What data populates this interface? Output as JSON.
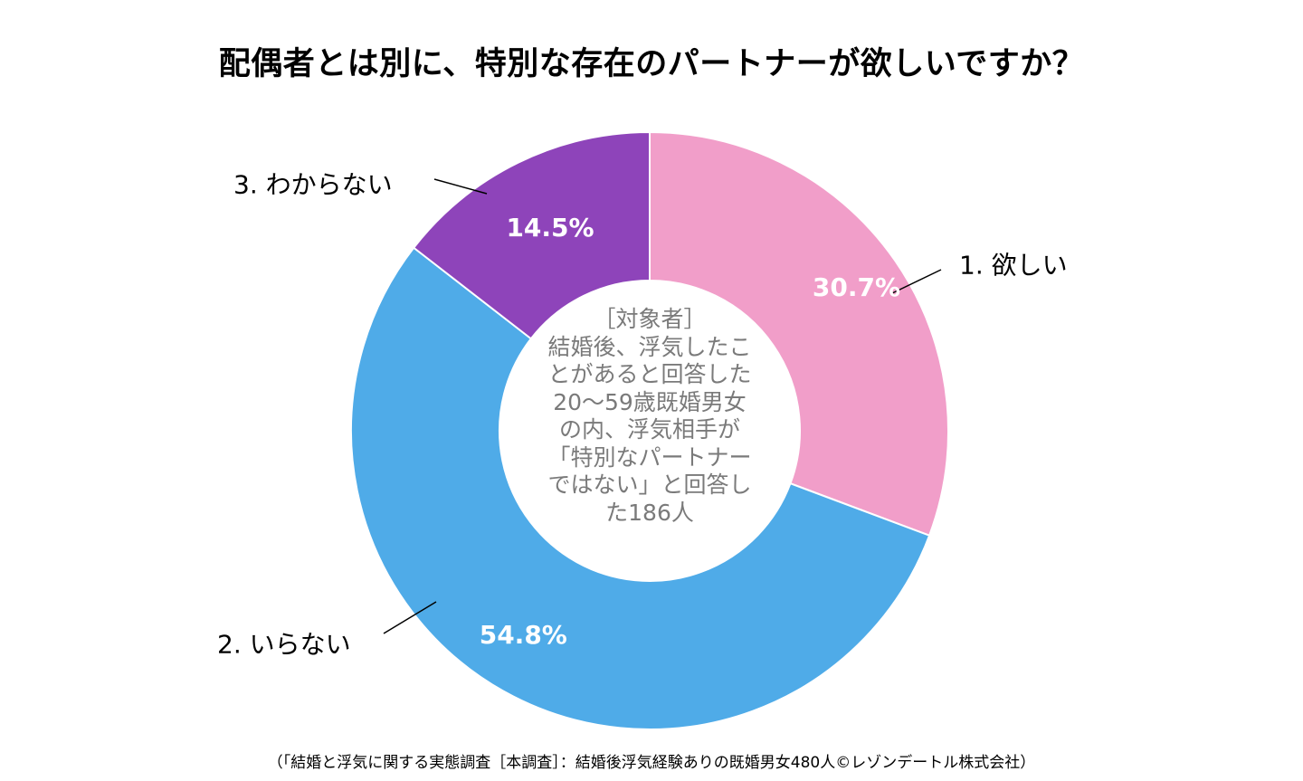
{
  "chart_data": {
    "type": "pie",
    "variant": "donut",
    "title": "配偶者とは別に、特別な存在のパートナーが欲しいですか？",
    "categories": [
      "1. 欲しい",
      "2. いらない",
      "3. わからない"
    ],
    "values": [
      30.7,
      54.8,
      14.5
    ],
    "value_labels": [
      "30.7%",
      "54.8%",
      "14.5%"
    ],
    "colors": [
      "#F19EC9",
      "#4FABE8",
      "#8E44BA"
    ],
    "value_label_color": "#ffffff",
    "start": "12 o'clock",
    "direction": "clockwise",
    "center_text": [
      "［対象者］",
      "結婚後、浮気したこ",
      "とがあると回答した",
      "20～59歳既婚男女",
      "の内、浮気相手が",
      "「特別なパートナー",
      "ではない」と回答し",
      "た186人"
    ]
  },
  "footer": "（「結婚と浮気に関する実態調査［本調査］：結婚後浮気経験ありの既婚男女480人©レゾンデートル株式会社）"
}
